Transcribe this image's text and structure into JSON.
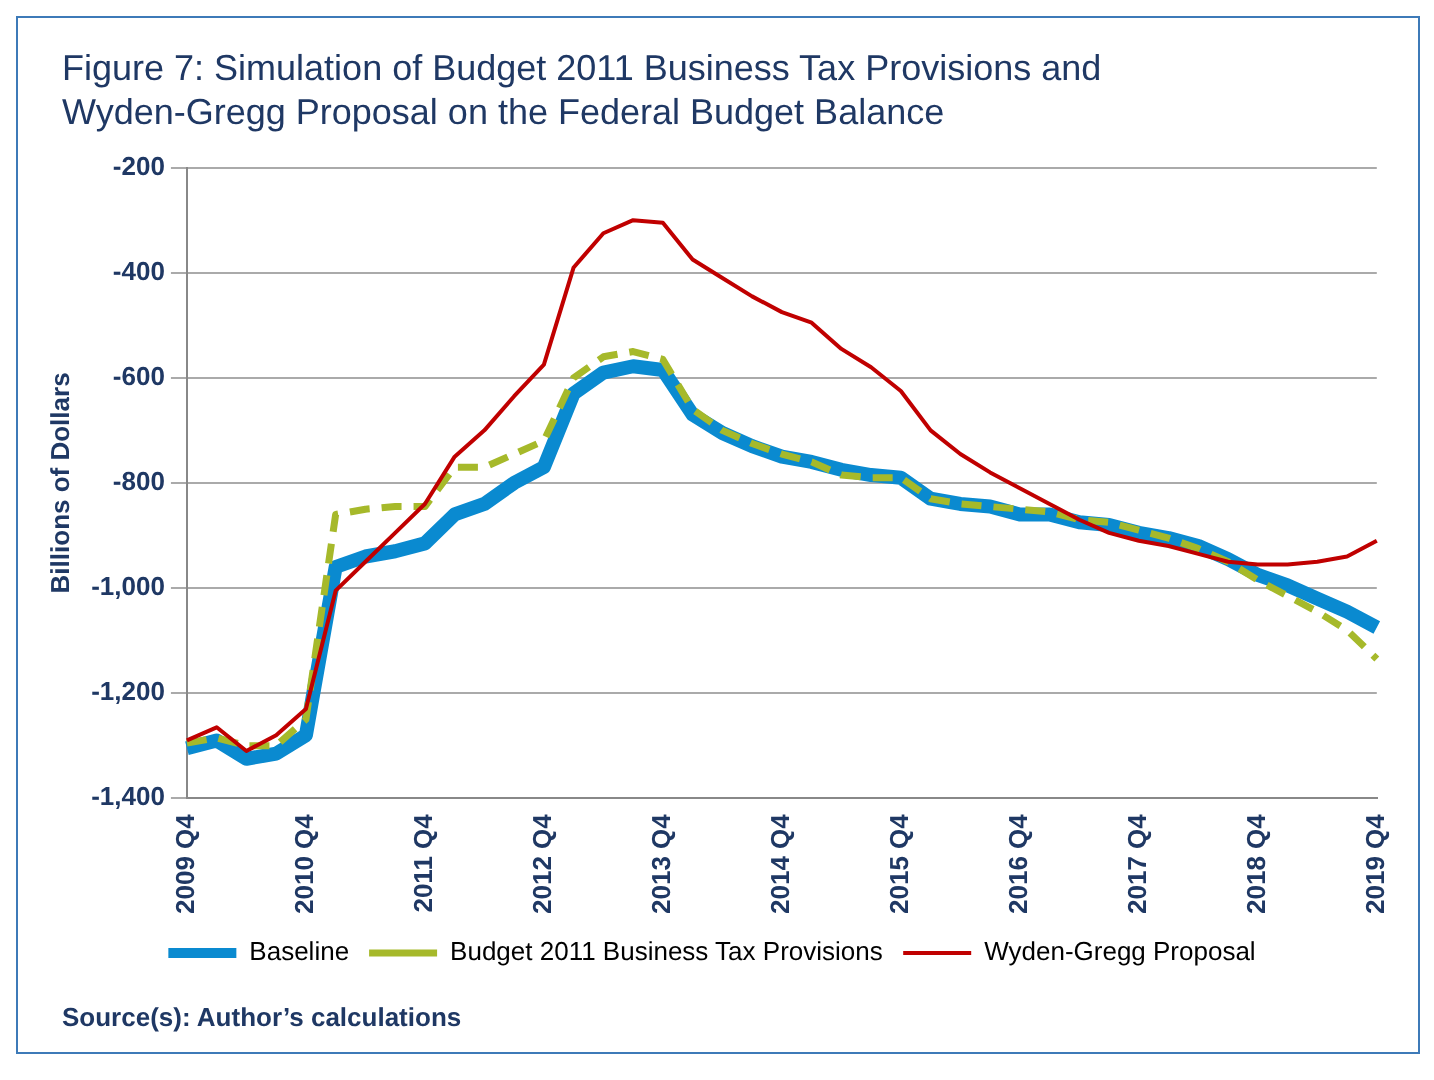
{
  "chart_data": {
    "type": "line",
    "title": "Figure 7: Simulation of Budget 2011 Business Tax Provisions and\nWyden-Gregg Proposal on the Federal Budget Balance",
    "ylabel": "Billions of Dollars",
    "annotations": [
      "Source(s): Author’s calculations"
    ],
    "categories": [
      "2009 Q4",
      null,
      null,
      null,
      "2010 Q4",
      null,
      null,
      null,
      "2011 Q4",
      null,
      null,
      null,
      "2012 Q4",
      null,
      null,
      null,
      "2013 Q4",
      null,
      null,
      null,
      "2014 Q4",
      null,
      null,
      null,
      "2015 Q4",
      null,
      null,
      null,
      "2016 Q4",
      null,
      null,
      null,
      "2017 Q4",
      null,
      null,
      null,
      "2018 Q4",
      null,
      null,
      null,
      "2019 Q4"
    ],
    "series": [
      {
        "name": "Baseline",
        "color": "#0a8ad0",
        "line_style": "solid",
        "values": [
          -1305,
          -1290,
          -1325,
          -1315,
          -1280,
          -960,
          -940,
          -930,
          -915,
          -860,
          -840,
          -800,
          -770,
          -630,
          -590,
          -578,
          -585,
          -670,
          -705,
          -730,
          -750,
          -760,
          -775,
          -785,
          -790,
          -830,
          -840,
          -845,
          -860,
          -860,
          -875,
          -880,
          -895,
          -905,
          -920,
          -945,
          -975,
          -995,
          -1020,
          -1045,
          -1075
        ]
      },
      {
        "name": "Budget 2011 Business Tax Provisions",
        "color": "#a6b92a",
        "line_style": "dashed",
        "values": [
          -1295,
          -1285,
          -1300,
          -1300,
          -1250,
          -860,
          -850,
          -845,
          -845,
          -770,
          -770,
          -745,
          -720,
          -600,
          -560,
          -550,
          -565,
          -660,
          -700,
          -725,
          -745,
          -760,
          -785,
          -790,
          -790,
          -830,
          -840,
          -845,
          -850,
          -855,
          -870,
          -875,
          -890,
          -905,
          -925,
          -950,
          -985,
          -1015,
          -1045,
          -1080,
          -1135
        ]
      },
      {
        "name": "Wyden-Gregg Proposal",
        "color": "#c00000",
        "line_style": "solid",
        "values": [
          -1290,
          -1265,
          -1310,
          -1280,
          -1230,
          -1005,
          -950,
          -895,
          -840,
          -750,
          -700,
          -635,
          -575,
          -390,
          -325,
          -300,
          -305,
          -375,
          -410,
          -445,
          -475,
          -495,
          -545,
          -580,
          -625,
          -700,
          -745,
          -780,
          -810,
          -840,
          -870,
          -895,
          -910,
          -920,
          -935,
          -950,
          -955,
          -955,
          -950,
          -940,
          -910
        ]
      }
    ],
    "ylim": [
      -1400,
      -200
    ],
    "yticks": [
      {
        "value": -1400,
        "label": "-1,400"
      },
      {
        "value": -1200,
        "label": "-1,200"
      },
      {
        "value": -1000,
        "label": "-1,000"
      },
      -800,
      -600,
      -400,
      -200
    ],
    "grid": "y",
    "legend": "bottom",
    "marker": "none"
  }
}
